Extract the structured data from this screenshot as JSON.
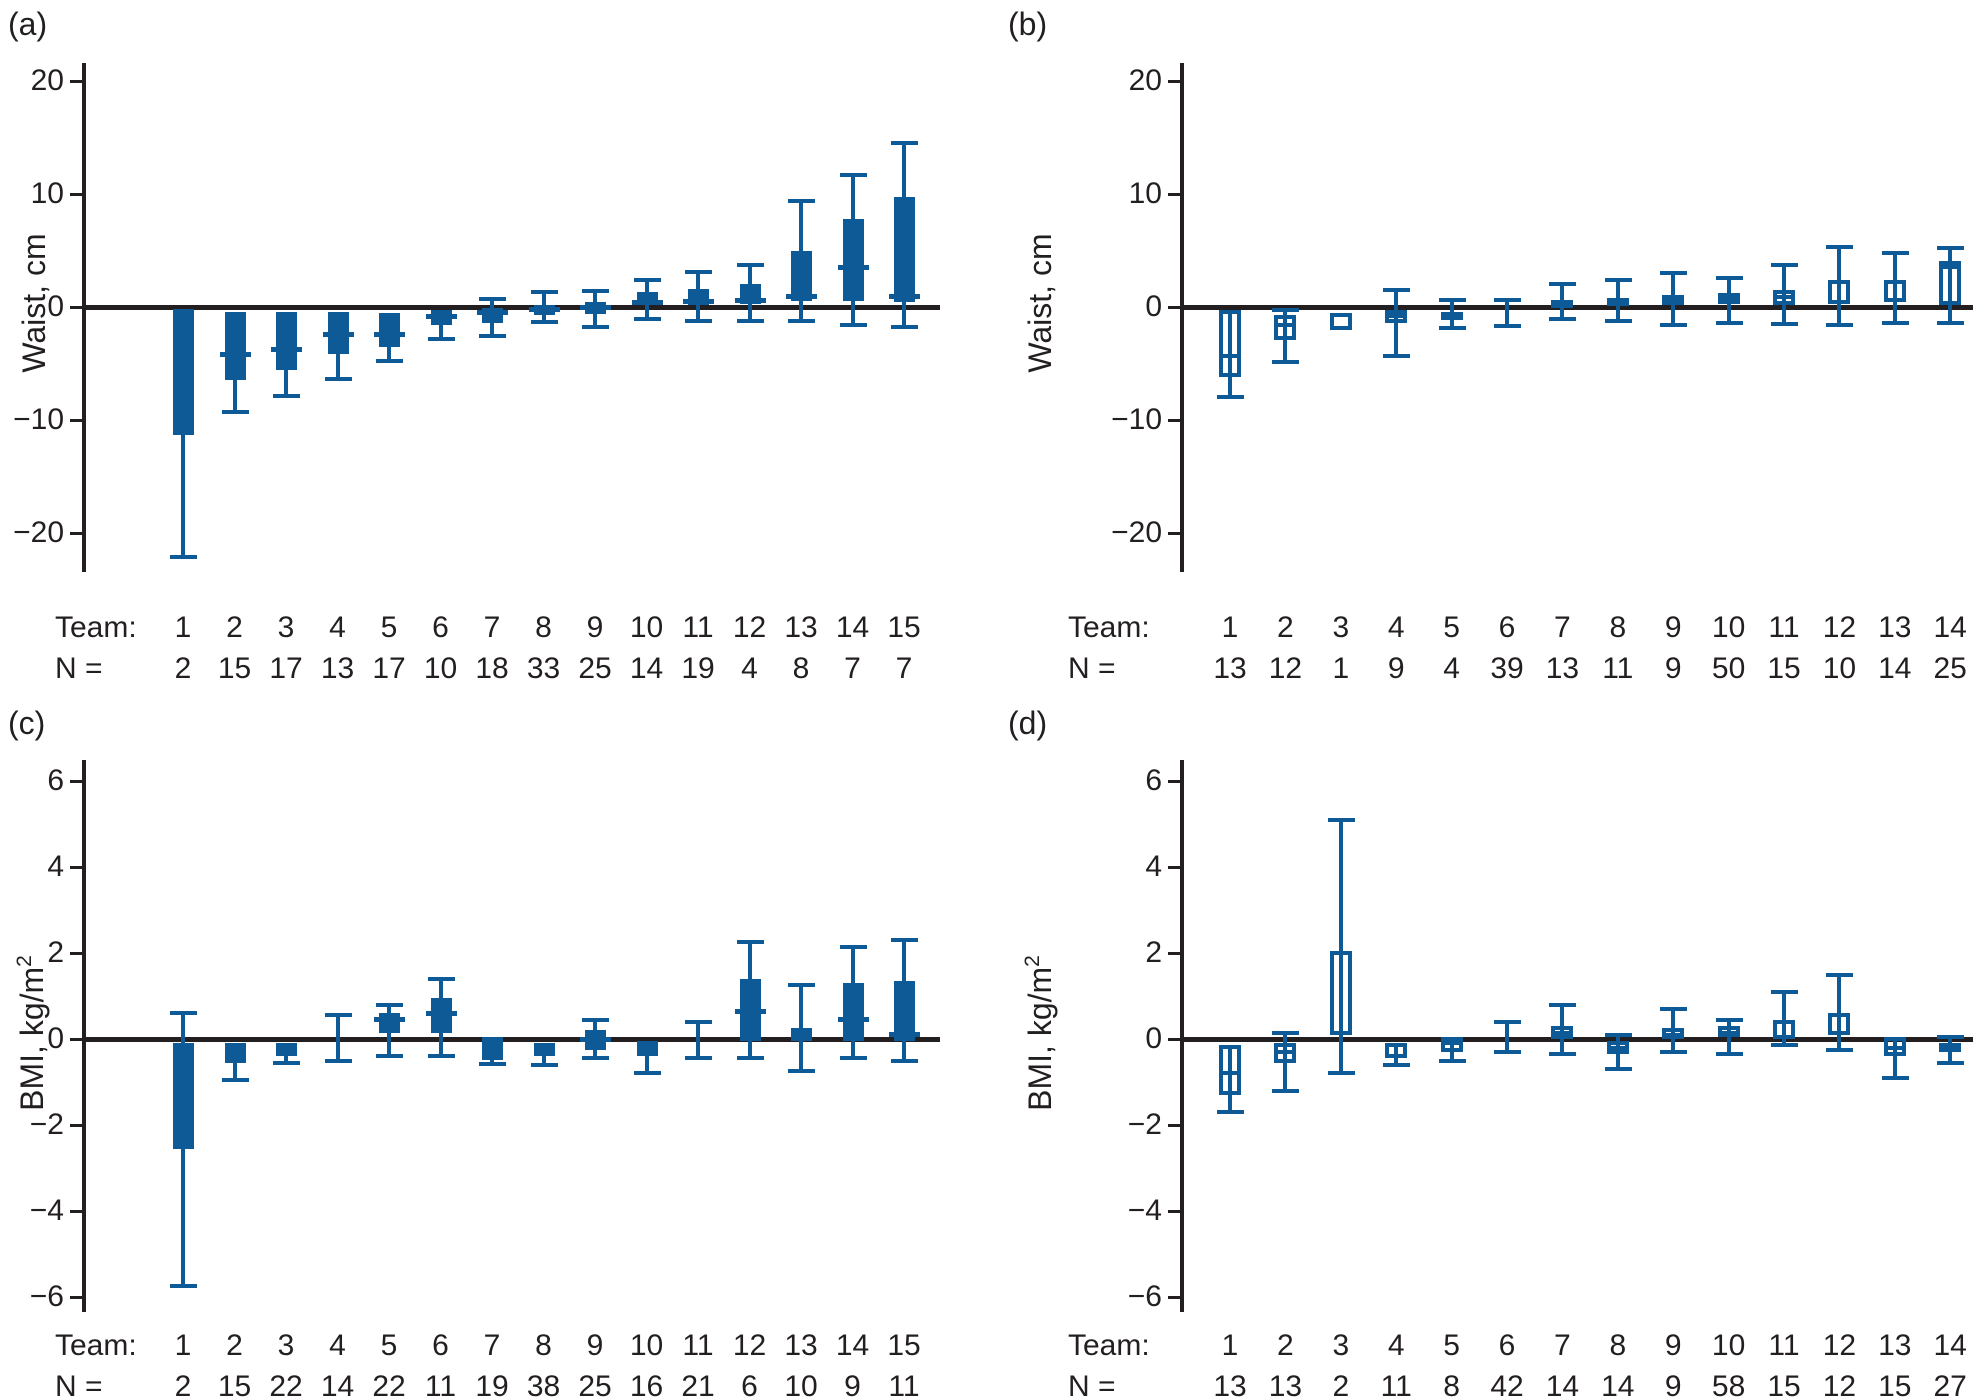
{
  "figure_title": "",
  "colors": {
    "box_blue": "#0e5a96",
    "axis_dark": "#231f20",
    "background": "#ffffff"
  },
  "chart_data": [
    {
      "id": "a",
      "letter": "(a)",
      "type": "box",
      "style": "filled",
      "ylabel": "Waist, cm",
      "ylabel_sup": "",
      "ylim": [
        -25,
        22
      ],
      "grid": false,
      "yticks": [
        {
          "v": 20,
          "label": "20"
        },
        {
          "v": 10,
          "label": "10"
        },
        {
          "v": 0,
          "label": "0"
        },
        {
          "v": -10,
          "label": "−10"
        },
        {
          "v": -20,
          "label": "−20"
        }
      ],
      "team_label": "Team:",
      "n_label": "N =",
      "teams": [
        "1",
        "2",
        "3",
        "4",
        "5",
        "6",
        "7",
        "8",
        "9",
        "10",
        "11",
        "12",
        "13",
        "14",
        "15"
      ],
      "n_values": [
        "2",
        "15",
        "17",
        "13",
        "17",
        "10",
        "18",
        "33",
        "25",
        "14",
        "19",
        "4",
        "8",
        "7",
        "7"
      ],
      "boxes": [
        {
          "team": "1",
          "n": "2",
          "q1": -11.3,
          "q3": -0.2,
          "median": null,
          "whisker_low": -22.1,
          "whisker_high": null
        },
        {
          "team": "2",
          "n": "15",
          "q1": -6.5,
          "q3": -0.4,
          "median": -4.2,
          "whisker_low": -9.3,
          "whisker_high": null
        },
        {
          "team": "3",
          "n": "17",
          "q1": -5.6,
          "q3": -0.4,
          "median": -3.8,
          "whisker_low": -7.9,
          "whisker_high": null
        },
        {
          "team": "4",
          "n": "13",
          "q1": -4.2,
          "q3": -0.4,
          "median": -2.4,
          "whisker_low": -6.4,
          "whisker_high": null
        },
        {
          "team": "5",
          "n": "17",
          "q1": -3.5,
          "q3": -0.5,
          "median": -2.4,
          "whisker_low": -4.8,
          "whisker_high": null
        },
        {
          "team": "6",
          "n": "10",
          "q1": -1.6,
          "q3": -0.3,
          "median": -0.8,
          "whisker_low": -2.8,
          "whisker_high": null
        },
        {
          "team": "7",
          "n": "18",
          "q1": -1.4,
          "q3": -0.1,
          "median": -0.5,
          "whisker_low": -2.6,
          "whisker_high": 0.7
        },
        {
          "team": "8",
          "n": "33",
          "q1": -0.7,
          "q3": 0.2,
          "median": -0.2,
          "whisker_low": -1.3,
          "whisker_high": 1.3
        },
        {
          "team": "9",
          "n": "25",
          "q1": -0.6,
          "q3": 0.4,
          "median": 0.0,
          "whisker_low": -1.8,
          "whisker_high": 1.4
        },
        {
          "team": "10",
          "n": "14",
          "q1": 0.2,
          "q3": 1.3,
          "median": 0.4,
          "whisker_low": -1.1,
          "whisker_high": 2.4
        },
        {
          "team": "11",
          "n": "19",
          "q1": 0.2,
          "q3": 1.6,
          "median": 0.5,
          "whisker_low": -1.2,
          "whisker_high": 3.1
        },
        {
          "team": "12",
          "n": "4",
          "q1": 0.3,
          "q3": 2.0,
          "median": 0.6,
          "whisker_low": -1.2,
          "whisker_high": 3.7
        },
        {
          "team": "13",
          "n": "8",
          "q1": 0.5,
          "q3": 5.0,
          "median": 0.9,
          "whisker_low": -1.2,
          "whisker_high": 9.4
        },
        {
          "team": "14",
          "n": "7",
          "q1": 0.5,
          "q3": 7.8,
          "median": 3.5,
          "whisker_low": -1.6,
          "whisker_high": 11.7
        },
        {
          "team": "15",
          "n": "7",
          "q1": 0.4,
          "q3": 9.7,
          "median": 0.9,
          "whisker_low": -1.8,
          "whisker_high": 14.5
        }
      ]
    },
    {
      "id": "b",
      "letter": "(b)",
      "type": "box",
      "style": "open",
      "ylabel": "Waist, cm",
      "ylabel_sup": "",
      "ylim": [
        -25,
        22
      ],
      "grid": false,
      "yticks": [
        {
          "v": 20,
          "label": "20"
        },
        {
          "v": 10,
          "label": "10"
        },
        {
          "v": 0,
          "label": "0"
        },
        {
          "v": -10,
          "label": "−10"
        },
        {
          "v": -20,
          "label": "−20"
        }
      ],
      "team_label": "Team:",
      "n_label": "N =",
      "teams": [
        "1",
        "2",
        "3",
        "4",
        "5",
        "6",
        "7",
        "8",
        "9",
        "10",
        "11",
        "12",
        "13",
        "14"
      ],
      "n_values": [
        "13",
        "12",
        "1",
        "9",
        "4",
        "39",
        "13",
        "11",
        "9",
        "50",
        "15",
        "10",
        "14",
        "25"
      ],
      "boxes": [
        {
          "team": "1",
          "n": "13",
          "q1": -6.2,
          "q3": -0.3,
          "median": -4.3,
          "whisker_low": -8.0,
          "whisker_high": null
        },
        {
          "team": "2",
          "n": "12",
          "q1": -2.9,
          "q3": -0.7,
          "median": -1.6,
          "whisker_low": -4.9,
          "whisker_high": -0.25
        },
        {
          "team": "3",
          "n": "1",
          "q1": -2.0,
          "q3": -0.5,
          "median": null,
          "whisker_low": null,
          "whisker_high": null
        },
        {
          "team": "4",
          "n": "9",
          "q1": -1.4,
          "q3": -0.25,
          "median": -0.8,
          "whisker_low": -4.3,
          "whisker_high": 1.5
        },
        {
          "team": "5",
          "n": "4",
          "q1": -1.1,
          "q3": -0.4,
          "median": -0.7,
          "whisker_low": -1.9,
          "whisker_high": 0.6
        },
        {
          "team": "6",
          "n": "39",
          "q1": null,
          "q3": null,
          "median": null,
          "whisker_low": -1.7,
          "whisker_high": 0.65
        },
        {
          "team": "7",
          "n": "13",
          "q1": 0.05,
          "q3": 0.6,
          "median": 0.35,
          "whisker_low": -1.05,
          "whisker_high": 2.05
        },
        {
          "team": "8",
          "n": "11",
          "q1": 0.05,
          "q3": 0.8,
          "median": 0.4,
          "whisker_low": -1.2,
          "whisker_high": 2.35
        },
        {
          "team": "9",
          "n": "9",
          "q1": 0.2,
          "q3": 1.1,
          "median": 0.7,
          "whisker_low": -1.6,
          "whisker_high": 3.0
        },
        {
          "team": "10",
          "n": "50",
          "q1": 0.3,
          "q3": 1.25,
          "median": 0.75,
          "whisker_low": -1.4,
          "whisker_high": 2.6
        },
        {
          "team": "11",
          "n": "15",
          "q1": 0.15,
          "q3": 1.5,
          "median": 0.9,
          "whisker_low": -1.5,
          "whisker_high": 3.7
        },
        {
          "team": "12",
          "n": "10",
          "q1": 0.3,
          "q3": 2.35,
          "median": null,
          "whisker_low": -1.6,
          "whisker_high": 5.3
        },
        {
          "team": "13",
          "n": "14",
          "q1": 0.45,
          "q3": 2.35,
          "median": null,
          "whisker_low": -1.4,
          "whisker_high": 4.8
        },
        {
          "team": "14",
          "n": "25",
          "q1": 0.15,
          "q3": 4.1,
          "median": 3.5,
          "whisker_low": -1.4,
          "whisker_high": 5.25
        }
      ]
    },
    {
      "id": "c",
      "letter": "(c)",
      "type": "box",
      "style": "filled",
      "ylabel": "BMI, kg/m",
      "ylabel_sup": "2",
      "ylim": [
        -6.8,
        6.6
      ],
      "grid": false,
      "yticks": [
        {
          "v": 6,
          "label": "6"
        },
        {
          "v": 4,
          "label": "4"
        },
        {
          "v": 2,
          "label": "2"
        },
        {
          "v": 0,
          "label": "0"
        },
        {
          "v": -2,
          "label": "−2"
        },
        {
          "v": -4,
          "label": "−4"
        },
        {
          "v": -6,
          "label": "−6"
        }
      ],
      "team_label": "Team:",
      "n_label": "N =",
      "teams": [
        "1",
        "2",
        "3",
        "4",
        "5",
        "6",
        "7",
        "8",
        "9",
        "10",
        "11",
        "12",
        "13",
        "14",
        "15"
      ],
      "n_values": [
        "2",
        "15",
        "22",
        "14",
        "22",
        "11",
        "19",
        "38",
        "25",
        "16",
        "21",
        "6",
        "10",
        "9",
        "11"
      ],
      "boxes": [
        {
          "team": "1",
          "n": "2",
          "q1": -2.55,
          "q3": -0.1,
          "median": null,
          "whisker_low": -5.75,
          "whisker_high": 0.6
        },
        {
          "team": "2",
          "n": "15",
          "q1": -0.55,
          "q3": -0.1,
          "median": null,
          "whisker_low": -0.95,
          "whisker_high": null
        },
        {
          "team": "3",
          "n": "22",
          "q1": -0.4,
          "q3": -0.1,
          "median": null,
          "whisker_low": -0.55,
          "whisker_high": null
        },
        {
          "team": "4",
          "n": "14",
          "q1": null,
          "q3": null,
          "median": null,
          "whisker_low": -0.5,
          "whisker_high": 0.55
        },
        {
          "team": "5",
          "n": "22",
          "q1": 0.15,
          "q3": 0.6,
          "median": 0.45,
          "whisker_low": -0.4,
          "whisker_high": 0.8
        },
        {
          "team": "6",
          "n": "11",
          "q1": 0.15,
          "q3": 0.95,
          "median": 0.6,
          "whisker_low": -0.4,
          "whisker_high": 1.4
        },
        {
          "team": "7",
          "n": "19",
          "q1": -0.5,
          "q3": 0.05,
          "median": null,
          "whisker_low": -0.57,
          "whisker_high": null
        },
        {
          "team": "8",
          "n": "38",
          "q1": -0.4,
          "q3": -0.1,
          "median": null,
          "whisker_low": -0.6,
          "whisker_high": null
        },
        {
          "team": "9",
          "n": "25",
          "q1": -0.25,
          "q3": 0.2,
          "median": 0.0,
          "whisker_low": -0.45,
          "whisker_high": 0.45
        },
        {
          "team": "10",
          "n": "16",
          "q1": -0.4,
          "q3": -0.05,
          "median": null,
          "whisker_low": -0.8,
          "whisker_high": null
        },
        {
          "team": "11",
          "n": "21",
          "q1": null,
          "q3": null,
          "median": null,
          "whisker_low": -0.45,
          "whisker_high": 0.4
        },
        {
          "team": "12",
          "n": "6",
          "q1": -0.05,
          "q3": 1.4,
          "median": 0.65,
          "whisker_low": -0.45,
          "whisker_high": 2.25
        },
        {
          "team": "13",
          "n": "10",
          "q1": -0.05,
          "q3": 0.25,
          "median": null,
          "whisker_low": -0.75,
          "whisker_high": 1.25
        },
        {
          "team": "14",
          "n": "9",
          "q1": -0.05,
          "q3": 1.3,
          "median": 0.45,
          "whisker_low": -0.45,
          "whisker_high": 2.15
        },
        {
          "team": "15",
          "n": "11",
          "q1": -0.05,
          "q3": 1.35,
          "median": 0.1,
          "whisker_low": -0.5,
          "whisker_high": 2.3
        }
      ]
    },
    {
      "id": "d",
      "letter": "(d)",
      "type": "box",
      "style": "open",
      "ylabel": "BMI, kg/m",
      "ylabel_sup": "2",
      "ylim": [
        -6.8,
        6.6
      ],
      "grid": false,
      "yticks": [
        {
          "v": 6,
          "label": "6"
        },
        {
          "v": 4,
          "label": "4"
        },
        {
          "v": 2,
          "label": "2"
        },
        {
          "v": 0,
          "label": "0"
        },
        {
          "v": -2,
          "label": "−2"
        },
        {
          "v": -4,
          "label": "−4"
        },
        {
          "v": -6,
          "label": "−6"
        }
      ],
      "team_label": "Team:",
      "n_label": "N =",
      "teams": [
        "1",
        "2",
        "3",
        "4",
        "5",
        "6",
        "7",
        "8",
        "9",
        "10",
        "11",
        "12",
        "13",
        "14"
      ],
      "n_values": [
        "13",
        "13",
        "2",
        "11",
        "8",
        "42",
        "14",
        "14",
        "9",
        "58",
        "15",
        "12",
        "15",
        "27"
      ],
      "boxes": [
        {
          "team": "1",
          "n": "13",
          "q1": -1.3,
          "q3": -0.15,
          "median": -0.8,
          "whisker_low": -1.7,
          "whisker_high": null
        },
        {
          "team": "2",
          "n": "13",
          "q1": -0.55,
          "q3": -0.1,
          "median": -0.3,
          "whisker_low": -1.2,
          "whisker_high": 0.15
        },
        {
          "team": "3",
          "n": "2",
          "q1": 0.1,
          "q3": 2.05,
          "median": null,
          "whisker_low": -0.8,
          "whisker_high": 5.1
        },
        {
          "team": "4",
          "n": "11",
          "q1": -0.45,
          "q3": -0.1,
          "median": null,
          "whisker_low": -0.6,
          "whisker_high": null
        },
        {
          "team": "5",
          "n": "8",
          "q1": -0.3,
          "q3": 0.05,
          "median": -0.1,
          "whisker_low": -0.5,
          "whisker_high": null
        },
        {
          "team": "6",
          "n": "42",
          "q1": null,
          "q3": null,
          "median": null,
          "whisker_low": -0.3,
          "whisker_high": 0.4
        },
        {
          "team": "7",
          "n": "14",
          "q1": 0.0,
          "q3": 0.3,
          "median": 0.15,
          "whisker_low": -0.35,
          "whisker_high": 0.8
        },
        {
          "team": "8",
          "n": "14",
          "q1": -0.35,
          "q3": -0.05,
          "median": -0.2,
          "whisker_low": -0.7,
          "whisker_high": 0.1
        },
        {
          "team": "9",
          "n": "9",
          "q1": 0.0,
          "q3": 0.25,
          "median": 0.1,
          "whisker_low": -0.3,
          "whisker_high": 0.7
        },
        {
          "team": "10",
          "n": "58",
          "q1": 0.05,
          "q3": 0.3,
          "median": 0.15,
          "whisker_low": -0.35,
          "whisker_high": 0.45
        },
        {
          "team": "11",
          "n": "15",
          "q1": 0.0,
          "q3": 0.45,
          "median": null,
          "whisker_low": -0.15,
          "whisker_high": 1.1
        },
        {
          "team": "12",
          "n": "12",
          "q1": 0.1,
          "q3": 0.6,
          "median": null,
          "whisker_low": -0.25,
          "whisker_high": 1.5
        },
        {
          "team": "13",
          "n": "15",
          "q1": -0.4,
          "q3": 0.05,
          "median": -0.2,
          "whisker_low": -0.9,
          "whisker_high": null
        },
        {
          "team": "14",
          "n": "27",
          "q1": -0.3,
          "q3": -0.1,
          "median": -0.2,
          "whisker_low": -0.55,
          "whisker_high": 0.05
        }
      ]
    }
  ]
}
